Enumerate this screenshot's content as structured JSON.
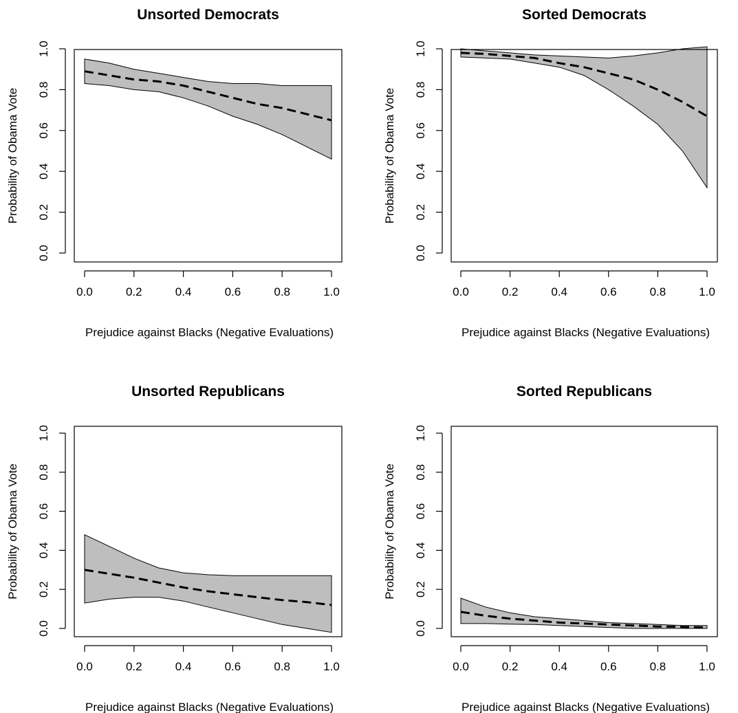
{
  "chart_data": [
    {
      "type": "area",
      "title": "Unsorted Democrats",
      "xlabel": "Prejudice against Blacks (Negative Evaluations)",
      "ylabel": "Probability of Obama Vote",
      "xlim": [
        0,
        1
      ],
      "ylim": [
        0,
        1
      ],
      "xticks": [
        "0.0",
        "0.2",
        "0.4",
        "0.6",
        "0.8",
        "1.0"
      ],
      "yticks": [
        "0.0",
        "0.2",
        "0.4",
        "0.6",
        "0.8",
        "1.0"
      ],
      "grid": false,
      "x": [
        0.0,
        0.1,
        0.2,
        0.3,
        0.4,
        0.5,
        0.6,
        0.7,
        0.8,
        0.9,
        1.0
      ],
      "series": [
        {
          "role": "estimate",
          "values": [
            0.89,
            0.87,
            0.85,
            0.84,
            0.82,
            0.79,
            0.76,
            0.73,
            0.71,
            0.68,
            0.65
          ]
        },
        {
          "role": "upper",
          "values": [
            0.95,
            0.93,
            0.9,
            0.88,
            0.86,
            0.84,
            0.83,
            0.83,
            0.82,
            0.82,
            0.82
          ]
        },
        {
          "role": "lower",
          "values": [
            0.83,
            0.82,
            0.8,
            0.79,
            0.76,
            0.72,
            0.67,
            0.63,
            0.58,
            0.52,
            0.46
          ]
        }
      ]
    },
    {
      "type": "area",
      "title": "Sorted Democrats",
      "xlabel": "Prejudice against Blacks (Negative Evaluations)",
      "ylabel": "Probability of Obama Vote",
      "xlim": [
        0,
        1
      ],
      "ylim": [
        0,
        1
      ],
      "xticks": [
        "0.0",
        "0.2",
        "0.4",
        "0.6",
        "0.8",
        "1.0"
      ],
      "yticks": [
        "0.0",
        "0.2",
        "0.4",
        "0.6",
        "0.8",
        "1.0"
      ],
      "grid": false,
      "x": [
        0.0,
        0.1,
        0.2,
        0.3,
        0.4,
        0.5,
        0.6,
        0.7,
        0.8,
        0.9,
        1.0
      ],
      "series": [
        {
          "role": "estimate",
          "values": [
            0.98,
            0.975,
            0.965,
            0.955,
            0.93,
            0.91,
            0.88,
            0.85,
            0.8,
            0.74,
            0.67
          ]
        },
        {
          "role": "upper",
          "values": [
            1.0,
            0.99,
            0.98,
            0.97,
            0.965,
            0.96,
            0.955,
            0.965,
            0.98,
            1.0,
            1.01
          ]
        },
        {
          "role": "lower",
          "values": [
            0.96,
            0.955,
            0.95,
            0.93,
            0.91,
            0.87,
            0.8,
            0.72,
            0.63,
            0.5,
            0.32
          ]
        }
      ]
    },
    {
      "type": "area",
      "title": "Unsorted Republicans",
      "xlabel": "Prejudice against Blacks (Negative Evaluations)",
      "ylabel": "Probability of Obama Vote",
      "xlim": [
        0,
        1
      ],
      "ylim": [
        0,
        1
      ],
      "xticks": [
        "0.0",
        "0.2",
        "0.4",
        "0.6",
        "0.8",
        "1.0"
      ],
      "yticks": [
        "0.0",
        "0.2",
        "0.4",
        "0.6",
        "0.8",
        "1.0"
      ],
      "grid": false,
      "x": [
        0.0,
        0.1,
        0.2,
        0.3,
        0.4,
        0.5,
        0.6,
        0.7,
        0.8,
        0.9,
        1.0
      ],
      "series": [
        {
          "role": "estimate",
          "values": [
            0.3,
            0.28,
            0.26,
            0.235,
            0.21,
            0.19,
            0.175,
            0.16,
            0.145,
            0.135,
            0.12
          ]
        },
        {
          "role": "upper",
          "values": [
            0.48,
            0.42,
            0.36,
            0.31,
            0.285,
            0.275,
            0.27,
            0.27,
            0.27,
            0.27,
            0.27
          ]
        },
        {
          "role": "lower",
          "values": [
            0.13,
            0.15,
            0.16,
            0.16,
            0.14,
            0.11,
            0.08,
            0.05,
            0.02,
            0.0,
            -0.02
          ]
        }
      ]
    },
    {
      "type": "area",
      "title": "Sorted Republicans",
      "xlabel": "Prejudice against Blacks (Negative Evaluations)",
      "ylabel": "Probability of Obama Vote",
      "xlim": [
        0,
        1
      ],
      "ylim": [
        0,
        1
      ],
      "xticks": [
        "0.0",
        "0.2",
        "0.4",
        "0.6",
        "0.8",
        "1.0"
      ],
      "yticks": [
        "0.0",
        "0.2",
        "0.4",
        "0.6",
        "0.8",
        "1.0"
      ],
      "grid": false,
      "x": [
        0.0,
        0.1,
        0.2,
        0.3,
        0.4,
        0.5,
        0.6,
        0.7,
        0.8,
        0.9,
        1.0
      ],
      "series": [
        {
          "role": "estimate",
          "values": [
            0.085,
            0.065,
            0.05,
            0.04,
            0.03,
            0.025,
            0.02,
            0.015,
            0.01,
            0.008,
            0.005
          ]
        },
        {
          "role": "upper",
          "values": [
            0.155,
            0.11,
            0.08,
            0.06,
            0.05,
            0.04,
            0.03,
            0.025,
            0.02,
            0.015,
            0.015
          ]
        },
        {
          "role": "lower",
          "values": [
            0.025,
            0.025,
            0.022,
            0.02,
            0.015,
            0.01,
            0.005,
            0.0,
            0.0,
            0.0,
            0.0
          ]
        }
      ]
    }
  ]
}
